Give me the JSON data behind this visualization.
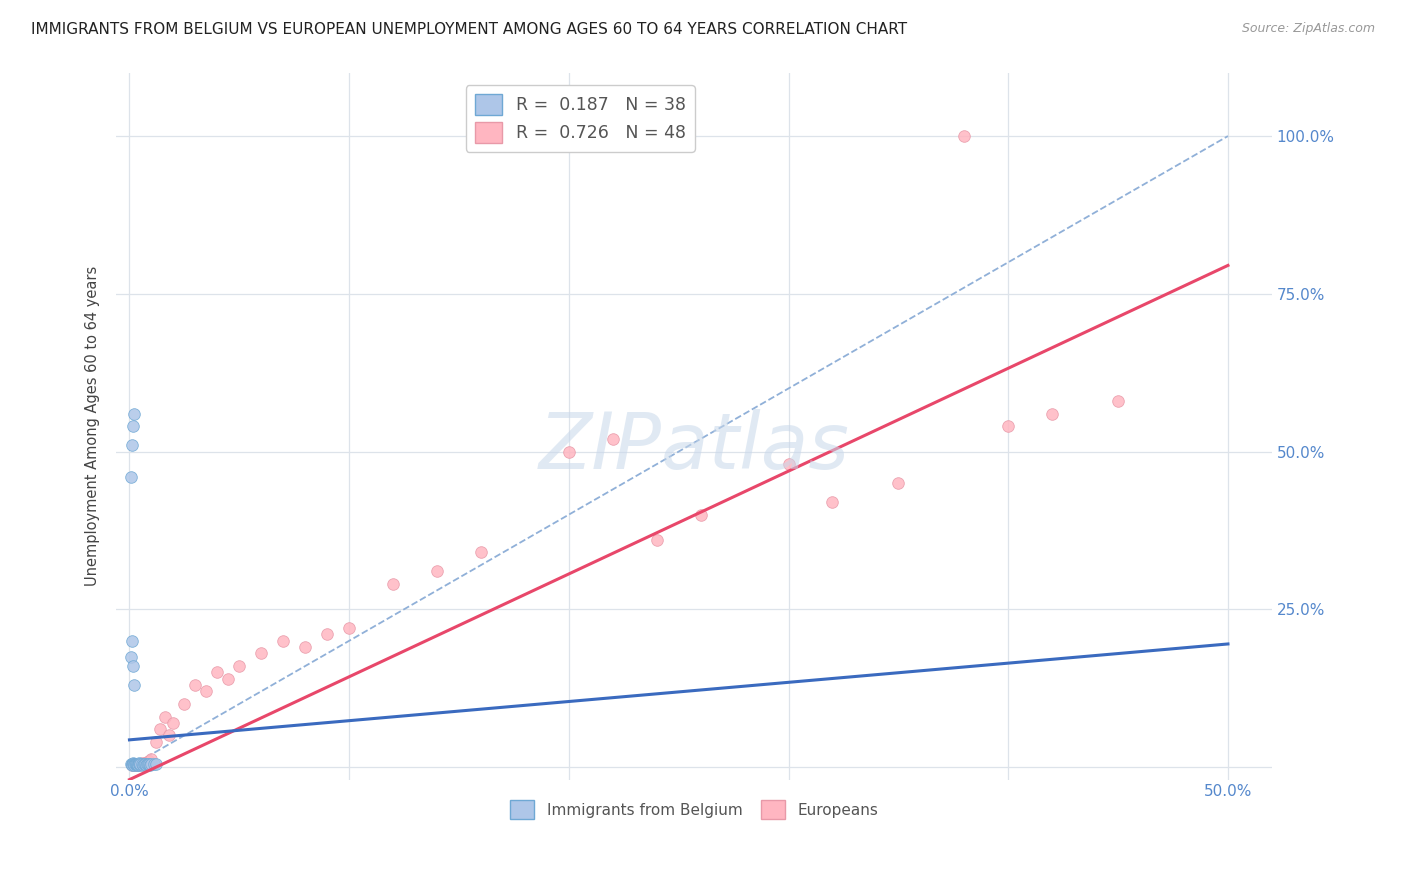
{
  "title": "IMMIGRANTS FROM BELGIUM VS EUROPEAN UNEMPLOYMENT AMONG AGES 60 TO 64 YEARS CORRELATION CHART",
  "source": "Source: ZipAtlas.com",
  "ylabel": "Unemployment Among Ages 60 to 64 years",
  "watermark": "ZIPatlas",
  "watermark_color": "#c8d8ea",
  "blue_color": "#aec6e8",
  "blue_edge": "#6fa8d4",
  "pink_color": "#ffb6c1",
  "pink_edge": "#e899a8",
  "blue_line_color": "#3a6abf",
  "pink_line_color": "#e8476a",
  "diag_color": "#90b0d8",
  "grid_color": "#dde3ea",
  "title_color": "#222222",
  "source_color": "#999999",
  "axis_label_color": "#444444",
  "tick_color": "#5588cc",
  "R1": "0.187",
  "N1": "38",
  "R2": "0.726",
  "N2": "48",
  "legend1_label": "Immigrants from Belgium",
  "legend2_label": "Europeans",
  "blue_x": [
    0.0008,
    0.001,
    0.0012,
    0.0015,
    0.0018,
    0.002,
    0.0022,
    0.0025,
    0.0028,
    0.003,
    0.0033,
    0.0035,
    0.0038,
    0.004,
    0.0042,
    0.0045,
    0.0048,
    0.005,
    0.0055,
    0.006,
    0.0065,
    0.007,
    0.0075,
    0.008,
    0.0085,
    0.009,
    0.0095,
    0.01,
    0.011,
    0.012,
    0.0008,
    0.001,
    0.0015,
    0.002,
    0.0008,
    0.0012,
    0.0015,
    0.002
  ],
  "blue_y": [
    0.004,
    0.005,
    0.003,
    0.006,
    0.004,
    0.005,
    0.003,
    0.004,
    0.005,
    0.004,
    0.003,
    0.005,
    0.004,
    0.003,
    0.006,
    0.004,
    0.003,
    0.005,
    0.004,
    0.003,
    0.004,
    0.005,
    0.003,
    0.004,
    0.005,
    0.004,
    0.003,
    0.004,
    0.005,
    0.004,
    0.175,
    0.2,
    0.54,
    0.56,
    0.46,
    0.51,
    0.16,
    0.13
  ],
  "pink_x": [
    0.001,
    0.0015,
    0.0018,
    0.002,
    0.0025,
    0.0028,
    0.003,
    0.0035,
    0.004,
    0.0045,
    0.005,
    0.0055,
    0.006,
    0.0065,
    0.007,
    0.008,
    0.009,
    0.01,
    0.012,
    0.014,
    0.016,
    0.018,
    0.02,
    0.025,
    0.03,
    0.035,
    0.04,
    0.045,
    0.05,
    0.06,
    0.07,
    0.08,
    0.09,
    0.1,
    0.12,
    0.14,
    0.16,
    0.2,
    0.22,
    0.24,
    0.26,
    0.3,
    0.32,
    0.35,
    0.38,
    0.4,
    0.42,
    0.45
  ],
  "pink_y": [
    0.003,
    0.004,
    0.003,
    0.004,
    0.003,
    0.005,
    0.004,
    0.003,
    0.005,
    0.004,
    0.005,
    0.006,
    0.005,
    0.004,
    0.006,
    0.008,
    0.01,
    0.012,
    0.04,
    0.06,
    0.08,
    0.05,
    0.07,
    0.1,
    0.13,
    0.12,
    0.15,
    0.14,
    0.16,
    0.18,
    0.2,
    0.19,
    0.21,
    0.22,
    0.29,
    0.31,
    0.34,
    0.5,
    0.52,
    0.36,
    0.4,
    0.48,
    0.42,
    0.45,
    1.0,
    0.54,
    0.56,
    0.58
  ],
  "blue_line": [
    [
      0.0,
      0.5
    ],
    [
      0.043,
      0.195
    ]
  ],
  "pink_line": [
    [
      0.0,
      0.5
    ],
    [
      -0.02,
      0.795
    ]
  ],
  "diag_line": [
    [
      0.0,
      0.5
    ],
    [
      0.0,
      1.0
    ]
  ],
  "xlim": [
    -0.006,
    0.52
  ],
  "ylim": [
    -0.02,
    1.1
  ],
  "xtick_pos": [
    0.0,
    0.1,
    0.2,
    0.3,
    0.4,
    0.5
  ],
  "xtick_lab": [
    "0.0%",
    "",
    "",
    "",
    "",
    "50.0%"
  ],
  "ytick_pos": [
    0.0,
    0.25,
    0.5,
    0.75,
    1.0
  ],
  "ytick_lab_right": [
    "",
    "25.0%",
    "50.0%",
    "75.0%",
    "100.0%"
  ],
  "scatter_size": 70
}
